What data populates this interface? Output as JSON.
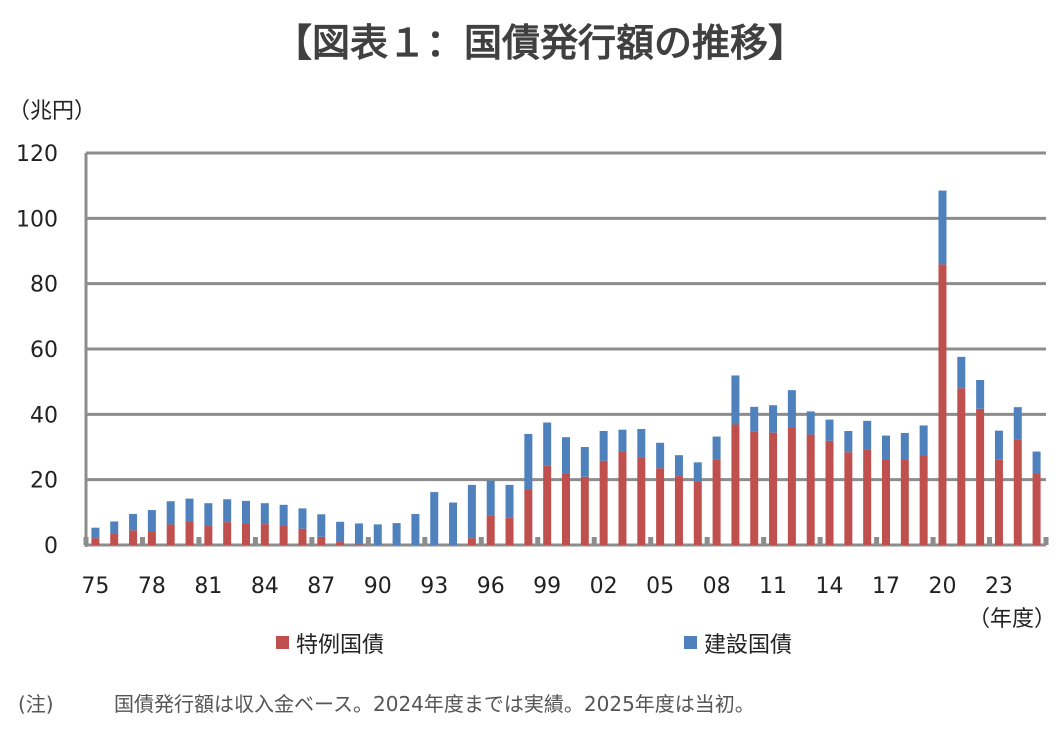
{
  "chart_data": {
    "type": "bar",
    "stacked": true,
    "title": "【図表１：国債発行額の推移】",
    "ylabel": "（兆円）",
    "xlabel": "（年度）",
    "ylim": [
      0,
      120
    ],
    "yticks": [
      0,
      20,
      40,
      60,
      80,
      100,
      120
    ],
    "grid": true,
    "legend_placement": "bottom",
    "x": [
      1975,
      1976,
      1977,
      1978,
      1979,
      1980,
      1981,
      1982,
      1983,
      1984,
      1985,
      1986,
      1987,
      1988,
      1989,
      1990,
      1991,
      1992,
      1993,
      1994,
      1995,
      1996,
      1997,
      1998,
      1999,
      2000,
      2001,
      2002,
      2003,
      2004,
      2005,
      2006,
      2007,
      2008,
      2009,
      2010,
      2011,
      2012,
      2013,
      2014,
      2015,
      2016,
      2017,
      2018,
      2019,
      2020,
      2021,
      2022,
      2023,
      2024,
      2025
    ],
    "xtick_labels": [
      "75",
      "78",
      "81",
      "84",
      "87",
      "90",
      "93",
      "96",
      "99",
      "02",
      "05",
      "08",
      "11",
      "14",
      "17",
      "20",
      "23"
    ],
    "xtick_years": [
      1975,
      1978,
      1981,
      1984,
      1987,
      1990,
      1993,
      1996,
      1999,
      2002,
      2005,
      2008,
      2011,
      2014,
      2017,
      2020,
      2023
    ],
    "series": [
      {
        "name": "特例国債",
        "color": "#c0504d",
        "values": [
          2.1,
          3.5,
          4.5,
          4.3,
          6.3,
          7.2,
          5.8,
          7.0,
          6.7,
          6.4,
          6.0,
          5.0,
          2.5,
          0.9,
          0.2,
          0,
          0,
          0,
          0,
          0,
          2.1,
          9.0,
          8.5,
          17.0,
          24.3,
          21.9,
          20.9,
          25.8,
          28.6,
          26.8,
          23.5,
          21.1,
          19.3,
          26.2,
          36.9,
          34.7,
          34.4,
          36.0,
          33.8,
          31.9,
          28.4,
          29.1,
          26.2,
          26.2,
          27.4,
          85.9,
          48.0,
          41.7,
          26.1,
          32.4,
          21.9
        ]
      },
      {
        "name": "建設国債",
        "color": "#4f81bd",
        "values": [
          3.2,
          3.7,
          5.0,
          6.4,
          7.1,
          7.0,
          7.0,
          7.0,
          6.8,
          6.4,
          6.3,
          6.2,
          6.9,
          6.2,
          6.4,
          6.3,
          6.7,
          9.5,
          16.2,
          13.0,
          16.3,
          10.7,
          9.9,
          17.0,
          13.2,
          11.1,
          9.1,
          9.1,
          6.7,
          8.7,
          7.8,
          6.4,
          6.0,
          7.0,
          15.0,
          7.6,
          8.4,
          11.4,
          7.1,
          6.5,
          6.5,
          8.9,
          7.3,
          8.1,
          9.2,
          22.6,
          9.6,
          8.8,
          8.9,
          9.8,
          6.7
        ]
      }
    ],
    "note_label": "(注)",
    "note": "国債発行額は収入金ベース。2024年度までは実績。2025年度は当初。"
  }
}
